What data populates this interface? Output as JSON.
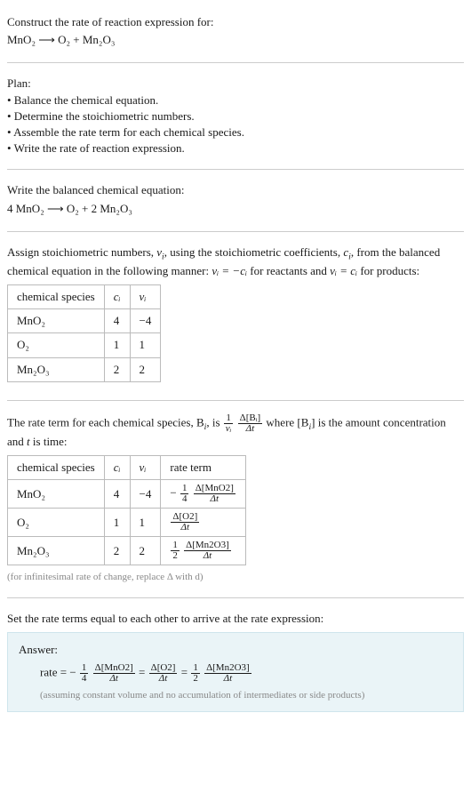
{
  "intro": {
    "prompt": "Construct the rate of reaction expression for:",
    "reaction": "MnO₂ ⟶ O₂ + Mn₂O₃"
  },
  "plan": {
    "title": "Plan:",
    "items": [
      "• Balance the chemical equation.",
      "• Determine the stoichiometric numbers.",
      "• Assemble the rate term for each chemical species.",
      "• Write the rate of reaction expression."
    ]
  },
  "balanced": {
    "title": "Write the balanced chemical equation:",
    "equation": "4 MnO₂ ⟶ O₂ + 2 Mn₂O₃"
  },
  "assign": {
    "text_parts": {
      "a": "Assign stoichiometric numbers, ",
      "nu_i": "ν",
      "sub_i": "i",
      "b": ", using the stoichiometric coefficients, ",
      "c_i": "c",
      "c": ", from the balanced chemical equation in the following manner: ",
      "eq1": "νᵢ = −cᵢ",
      "d": " for reactants and ",
      "eq2": "νᵢ = cᵢ",
      "e": " for products:"
    },
    "table": {
      "headers": [
        "chemical species",
        "cᵢ",
        "νᵢ"
      ],
      "rows": [
        [
          "MnO₂",
          "4",
          "−4"
        ],
        [
          "O₂",
          "1",
          "1"
        ],
        [
          "Mn₂O₃",
          "2",
          "2"
        ]
      ]
    }
  },
  "rateterm": {
    "text": {
      "a": "The rate term for each chemical species, B",
      "b": ", is ",
      "c": " where [B",
      "d": "] is the amount concentration and ",
      "t": "t",
      "e": " is time:"
    },
    "coef_frac": {
      "num": "1",
      "den": "νᵢ"
    },
    "delta_frac": {
      "num": "Δ[Bᵢ]",
      "den": "Δt"
    },
    "table": {
      "headers": [
        "chemical species",
        "cᵢ",
        "νᵢ",
        "rate term"
      ],
      "rows": [
        {
          "sp": "MnO₂",
          "c": "4",
          "nu": "−4",
          "sign": "−",
          "coef": {
            "num": "1",
            "den": "4"
          },
          "delta": {
            "num": "Δ[MnO2]",
            "den": "Δt"
          }
        },
        {
          "sp": "O₂",
          "c": "1",
          "nu": "1",
          "sign": "",
          "coef": null,
          "delta": {
            "num": "Δ[O2]",
            "den": "Δt"
          }
        },
        {
          "sp": "Mn₂O₃",
          "c": "2",
          "nu": "2",
          "sign": "",
          "coef": {
            "num": "1",
            "den": "2"
          },
          "delta": {
            "num": "Δ[Mn2O3]",
            "den": "Δt"
          }
        }
      ]
    },
    "caption": "(for infinitesimal rate of change, replace Δ with d)"
  },
  "final": {
    "title": "Set the rate terms equal to each other to arrive at the rate expression:",
    "answer_label": "Answer:",
    "rate_label": "rate = ",
    "terms": [
      {
        "sign": "−",
        "coef": {
          "num": "1",
          "den": "4"
        },
        "delta": {
          "num": "Δ[MnO2]",
          "den": "Δt"
        }
      },
      {
        "sign": "",
        "coef": null,
        "delta": {
          "num": "Δ[O2]",
          "den": "Δt"
        }
      },
      {
        "sign": "",
        "coef": {
          "num": "1",
          "den": "2"
        },
        "delta": {
          "num": "Δ[Mn2O3]",
          "den": "Δt"
        }
      }
    ],
    "note": "(assuming constant volume and no accumulation of intermediates or side products)"
  },
  "style": {
    "bg": "#ffffff",
    "text": "#1a1a1a",
    "hr": "#cccccc",
    "border": "#bbbbbb",
    "caption": "#888888",
    "answer_bg": "#eaf4f7",
    "answer_border": "#cfe5ec"
  }
}
